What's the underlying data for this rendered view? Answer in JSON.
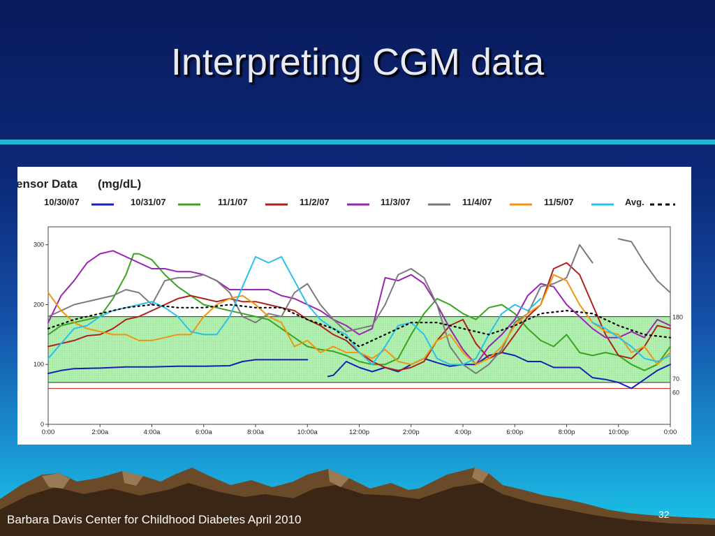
{
  "slide": {
    "title": "Interpreting CGM data",
    "footer": "Barbara Davis Center for Childhood Diabetes April 2010",
    "page_number": "32"
  },
  "chart_data": {
    "type": "line",
    "title": "ensor Data",
    "unit": "(mg/dL)",
    "x_tick_labels": [
      "0:00",
      "2:00a",
      "4:00a",
      "6:00a",
      "8:00a",
      "10:00a",
      "12:00p",
      "2:00p",
      "4:00p",
      "6:00p",
      "8:00p",
      "10:00p",
      "0:00"
    ],
    "y_ticks": [
      0,
      100,
      200,
      300
    ],
    "ylim": [
      0,
      330
    ],
    "xlim": [
      0,
      24
    ],
    "target_range": [
      70,
      180
    ],
    "reference_lines": [
      {
        "value": 180,
        "label": "180"
      },
      {
        "value": 70,
        "label": "70"
      },
      {
        "value": 60,
        "label": "60"
      }
    ],
    "legend_position": "top",
    "grid": false,
    "series": [
      {
        "name": "10/30/07",
        "color": "#1420b4",
        "x": [
          0,
          0.5,
          1,
          2,
          3,
          4,
          5,
          6,
          7,
          7.5,
          8,
          9,
          10,
          10.05,
          10.2,
          10.4,
          10.8,
          11,
          11.5,
          12,
          12.5,
          13,
          13.5,
          14,
          14.5,
          15,
          15.5,
          16,
          16.5,
          17,
          17.5,
          18,
          18.5,
          19,
          19.5,
          20,
          20.5,
          21,
          21.5,
          22,
          22.5,
          23,
          23.5,
          24
        ],
        "y": [
          85,
          90,
          93,
          94,
          96,
          96,
          97,
          97,
          98,
          105,
          108,
          108,
          108,
          null,
          null,
          null,
          80,
          82,
          105,
          95,
          88,
          95,
          88,
          100,
          110,
          103,
          97,
          100,
          100,
          115,
          120,
          115,
          105,
          105,
          95,
          95,
          95,
          78,
          75,
          70,
          60,
          75,
          90,
          100
        ]
      },
      {
        "name": "10/31/07",
        "color": "#3aa320",
        "x": [
          0,
          0.5,
          1,
          1.5,
          2,
          2.5,
          3,
          3.3,
          3.5,
          4,
          4.5,
          5,
          5.5,
          6,
          6.5,
          7,
          7.5,
          8,
          8.5,
          9,
          9.5,
          10,
          10.5,
          11,
          11.5,
          12,
          12.5,
          13,
          13.5,
          14,
          14.5,
          15,
          15.5,
          16,
          16.5,
          17,
          17.5,
          18,
          18.5,
          19,
          19.5,
          20,
          20.5,
          21,
          21.5,
          22,
          22.5,
          23,
          23.5,
          24
        ],
        "y": [
          150,
          165,
          170,
          175,
          180,
          210,
          250,
          285,
          285,
          275,
          250,
          230,
          215,
          200,
          195,
          190,
          185,
          180,
          175,
          160,
          145,
          130,
          125,
          122,
          115,
          105,
          100,
          100,
          110,
          150,
          185,
          210,
          200,
          185,
          175,
          195,
          200,
          185,
          160,
          140,
          130,
          150,
          120,
          115,
          120,
          115,
          100,
          90,
          100,
          130
        ]
      },
      {
        "name": "11/1/07",
        "color": "#b0201a",
        "x": [
          0,
          0.5,
          1,
          1.5,
          2,
          2.5,
          3,
          3.5,
          4,
          4.5,
          5,
          5.5,
          6,
          6.5,
          7,
          7.5,
          8,
          8.5,
          9,
          9.5,
          10,
          10.5,
          11,
          11.5,
          12,
          12.5,
          13,
          13.5,
          14,
          14.5,
          15,
          15.5,
          16,
          16.5,
          17,
          17.5,
          18,
          18.5,
          19,
          19.5,
          20,
          20.5,
          21,
          21.5,
          22,
          22.5,
          23,
          23.5,
          24
        ],
        "y": [
          130,
          135,
          140,
          148,
          150,
          160,
          175,
          180,
          190,
          200,
          210,
          215,
          210,
          205,
          210,
          205,
          205,
          200,
          195,
          190,
          175,
          165,
          150,
          140,
          120,
          105,
          95,
          90,
          95,
          105,
          140,
          165,
          175,
          135,
          110,
          120,
          150,
          180,
          200,
          260,
          270,
          250,
          200,
          150,
          115,
          110,
          130,
          165,
          160
        ]
      },
      {
        "name": "11/2/07",
        "color": "#9a22b4",
        "x": [
          0,
          0.5,
          1,
          1.5,
          2,
          2.5,
          3,
          3.5,
          4,
          4.5,
          5,
          5.5,
          6,
          6.5,
          7,
          7.5,
          8,
          8.5,
          9,
          9.5,
          10,
          10.5,
          11,
          11.5,
          12,
          12.5,
          13,
          13.5,
          14,
          14.5,
          15,
          15.5,
          16,
          16.5,
          17,
          17.5,
          18,
          18.5,
          19,
          19.5,
          20,
          20.5,
          21,
          21.5,
          22,
          22.5,
          23,
          23.5,
          24
        ],
        "y": [
          170,
          215,
          240,
          270,
          285,
          290,
          280,
          270,
          260,
          260,
          255,
          255,
          250,
          240,
          225,
          225,
          225,
          225,
          215,
          210,
          200,
          190,
          175,
          165,
          150,
          160,
          245,
          240,
          250,
          235,
          200,
          160,
          125,
          100,
          130,
          150,
          175,
          215,
          235,
          230,
          200,
          180,
          160,
          145,
          145,
          155,
          145,
          175,
          165
        ]
      },
      {
        "name": "11/3/07",
        "color": "#7a7a7a",
        "x": [
          0,
          0.5,
          1,
          1.5,
          2,
          2.5,
          3,
          3.5,
          4,
          4.5,
          5,
          5.5,
          6,
          6.5,
          7,
          7.5,
          8,
          8.5,
          9,
          9.5,
          10,
          10.5,
          11,
          11.5,
          12,
          12.5,
          13,
          13.5,
          14,
          14.5,
          15,
          15.5,
          16,
          16.5,
          17,
          17.5,
          18,
          18.5,
          19,
          19.5,
          20,
          20.5,
          21,
          21.5,
          22,
          22.5,
          23,
          23.5,
          24
        ],
        "y": [
          180,
          190,
          200,
          205,
          210,
          215,
          225,
          220,
          200,
          240,
          245,
          245,
          250,
          240,
          220,
          180,
          170,
          185,
          180,
          220,
          235,
          200,
          175,
          155,
          160,
          165,
          200,
          250,
          260,
          245,
          200,
          130,
          100,
          85,
          100,
          125,
          170,
          185,
          230,
          235,
          245,
          300,
          270,
          null,
          310,
          305,
          270,
          240,
          220
        ]
      },
      {
        "name": "11/4/07",
        "color": "#f0960c",
        "x": [
          0,
          0.5,
          1,
          1.5,
          2,
          2.5,
          3,
          3.5,
          4,
          4.5,
          5,
          5.5,
          6,
          6.5,
          7,
          7.5,
          8,
          8.5,
          9,
          9.5,
          10,
          10.5,
          11,
          11.5,
          12,
          12.5,
          13,
          13.5,
          14,
          14.5,
          15,
          15.5,
          16,
          16.5,
          17,
          17.5,
          18,
          18.5,
          19,
          19.5,
          20,
          20.5,
          21,
          21.5,
          22,
          22.5,
          23,
          23.5,
          24
        ],
        "y": [
          220,
          190,
          170,
          160,
          155,
          150,
          150,
          140,
          140,
          145,
          150,
          150,
          180,
          200,
          210,
          215,
          200,
          180,
          170,
          130,
          140,
          120,
          130,
          120,
          120,
          110,
          125,
          105,
          100,
          110,
          140,
          150,
          120,
          100,
          110,
          130,
          165,
          185,
          200,
          250,
          240,
          200,
          170,
          155,
          150,
          120,
          130,
          100,
          120
        ]
      },
      {
        "name": "11/5/07",
        "color": "#2ac0ec",
        "x": [
          0,
          0.5,
          1,
          1.5,
          2,
          2.5,
          3,
          3.5,
          4,
          4.5,
          5,
          5.5,
          6,
          6.5,
          7,
          7.5,
          8,
          8.5,
          9,
          9.5,
          10,
          10.5,
          11,
          11.5,
          12,
          12.5,
          13,
          13.5,
          14,
          14.5,
          15,
          15.5,
          16,
          16.5,
          17,
          17.5,
          18,
          18.5,
          19,
          19.5,
          20,
          20.5,
          21,
          21.5,
          22,
          22.5,
          23,
          23.5,
          24
        ],
        "y": [
          110,
          135,
          160,
          165,
          180,
          190,
          195,
          200,
          205,
          195,
          180,
          155,
          150,
          150,
          180,
          230,
          280,
          270,
          280,
          240,
          200,
          175,
          160,
          150,
          120,
          100,
          130,
          165,
          170,
          150,
          110,
          100,
          100,
          110,
          150,
          185,
          200,
          190,
          210,
          null,
          null,
          null,
          170,
          160,
          145,
          130,
          110,
          105,
          115
        ]
      },
      {
        "name": "Avg.",
        "color": "#000000",
        "x": [
          0,
          1,
          2,
          3,
          4,
          5,
          6,
          7,
          8,
          9,
          10,
          11,
          12,
          13,
          14,
          15,
          16,
          17,
          18,
          19,
          20,
          21,
          22,
          23,
          24
        ],
        "y": [
          160,
          175,
          185,
          195,
          200,
          195,
          195,
          200,
          195,
          195,
          175,
          160,
          130,
          150,
          170,
          170,
          160,
          150,
          165,
          185,
          190,
          185,
          165,
          150,
          145
        ]
      }
    ]
  }
}
